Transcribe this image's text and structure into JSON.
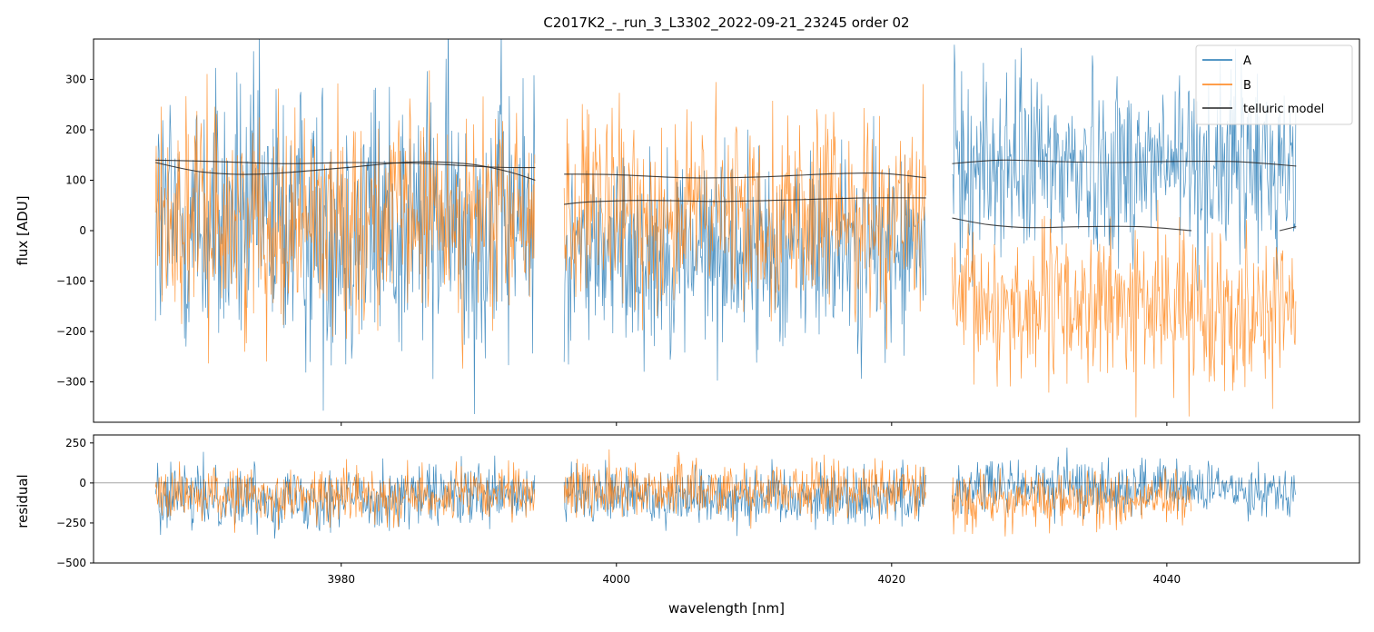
{
  "chart_data": [
    {
      "type": "line",
      "panel": "top",
      "title": "C2017K2_-_run_3_L3302_2022-09-21_23245  order 02",
      "xlabel": "",
      "ylabel": "flux [ADU]",
      "xlim": [
        3962,
        4054
      ],
      "ylim": [
        -380,
        380
      ],
      "yticks": [
        -300,
        -200,
        -100,
        0,
        100,
        200,
        300
      ],
      "ytick_labels": [
        "−300",
        "−200",
        "−100",
        "0",
        "100",
        "200",
        "300"
      ],
      "grid": false,
      "legend": {
        "position": "top-right",
        "entries": [
          "A",
          "B",
          "telluric model"
        ]
      },
      "colors": {
        "A": "#1f77b4",
        "B": "#ff7f0e",
        "telluric model": "#222222"
      },
      "segments": [
        {
          "x_start": 3966.5,
          "x_end": 3994.1,
          "A": {
            "center": 15,
            "amplitude": 380
          },
          "B": {
            "center": 25,
            "amplitude": 270
          },
          "telluric_A_x": [
            3966.5,
            3971,
            3976,
            3981,
            3986,
            3991,
            3994.1
          ],
          "telluric_A_y": [
            140,
            137,
            133,
            135,
            133,
            126,
            125
          ],
          "telluric_B_x": [
            3966.5,
            3970,
            3974,
            3980,
            3985,
            3989,
            3992,
            3994.1
          ],
          "telluric_B_y": [
            135,
            116,
            112,
            124,
            136,
            133,
            118,
            100
          ]
        },
        {
          "x_start": 3996.2,
          "x_end": 4022.5,
          "A": {
            "center": -40,
            "amplitude": 260
          },
          "B": {
            "center": 35,
            "amplitude": 250
          },
          "telluric_A_x": [
            3996.2,
            4000,
            4005,
            4010,
            4015,
            4019,
            4022.5
          ],
          "telluric_A_y": [
            112,
            111,
            105,
            106,
            112,
            114,
            105
          ],
          "telluric_B_x": [
            3996.2,
            3998,
            4002,
            4008,
            4014,
            4018,
            4022.5
          ],
          "telluric_B_y": [
            52,
            57,
            60,
            58,
            62,
            65,
            65
          ]
        },
        {
          "x_start": 4024.4,
          "x_end": 4049.4,
          "A": {
            "center": 130,
            "amplitude": 250
          },
          "B": {
            "center": -150,
            "amplitude": 200
          },
          "telluric_A_x": [
            4024.4,
            4028,
            4032,
            4036,
            4040,
            4045,
            4049.4
          ],
          "telluric_A_y": [
            133,
            140,
            137,
            135,
            137,
            137,
            128
          ],
          "telluric_B_x": [
            4024.4,
            4027,
            4030,
            4034,
            4038,
            4041.8
          ],
          "telluric_B_y": [
            25,
            12,
            6,
            8,
            8,
            0
          ],
          "telluric_B2_x": [
            4048.2,
            4049.4
          ],
          "telluric_B2_y": [
            0,
            8
          ]
        }
      ]
    },
    {
      "type": "line",
      "panel": "bottom",
      "xlabel": "wavelength [nm]",
      "ylabel": "residual",
      "xlim": [
        3962,
        4054
      ],
      "ylim": [
        -500,
        300
      ],
      "xticks": [
        3980,
        4000,
        4020,
        4040
      ],
      "xtick_labels": [
        "3980",
        "4000",
        "4020",
        "4040"
      ],
      "yticks": [
        -500,
        -250,
        0,
        250
      ],
      "ytick_labels": [
        "−500",
        "−250",
        "0",
        "250"
      ],
      "zero_line": 0,
      "grid": false,
      "segments": [
        {
          "x_start": 3966.5,
          "x_end": 3994.1,
          "A": {
            "center": -90,
            "amplitude": 260
          },
          "B": {
            "center": -80,
            "amplitude": 220
          }
        },
        {
          "x_start": 3996.2,
          "x_end": 4022.5,
          "A": {
            "center": -80,
            "amplitude": 250
          },
          "B": {
            "center": -40,
            "amplitude": 230
          }
        },
        {
          "x_start": 4024.4,
          "x_end": 4041.8,
          "A": {
            "center": -30,
            "amplitude": 240
          },
          "B": {
            "center": -110,
            "amplitude": 230
          }
        },
        {
          "x_start": 4041.8,
          "x_end": 4049.4,
          "A": {
            "center": -40,
            "amplitude": 200
          },
          "B": null
        }
      ]
    }
  ]
}
